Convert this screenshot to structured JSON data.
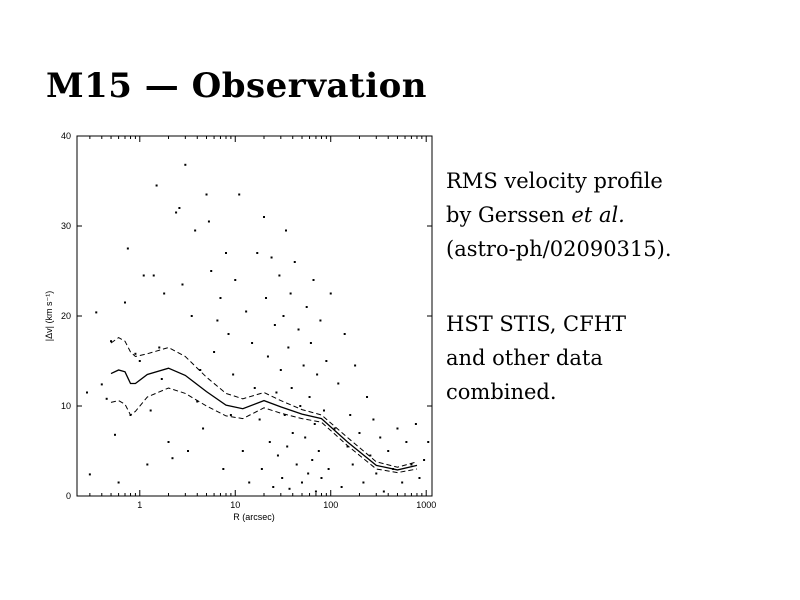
{
  "slide": {
    "title": "M15 — Observation"
  },
  "caption": {
    "line1": "RMS velocity profile",
    "line2_prefix": "by Gerssen ",
    "line2_italic": "et al.",
    "line3": "(astro-ph/02090315).",
    "line4": "HST STIS, CFHT",
    "line5": "and other data",
    "line6": "combined."
  },
  "chart_data": {
    "type": "scatter",
    "xlabel": "R (arcsec)",
    "ylabel": "|Δv| (km s⁻¹)",
    "x_scale": "log",
    "xlim": [
      0.22,
      1150
    ],
    "ylim": [
      0,
      40
    ],
    "x_ticks": [
      1,
      10,
      100,
      1000
    ],
    "x_tick_labels": [
      "1",
      "10",
      "100",
      "1000"
    ],
    "y_ticks": [
      0,
      10,
      20,
      30,
      40
    ],
    "y_tick_labels": [
      "0",
      "10",
      "20",
      "30",
      "40"
    ],
    "grid": false,
    "legend": "none",
    "series": [
      {
        "kind": "points",
        "points": [
          [
            0.28,
            11.5
          ],
          [
            0.3,
            2.4
          ],
          [
            0.35,
            20.4
          ],
          [
            0.4,
            12.4
          ],
          [
            0.45,
            10.8
          ],
          [
            0.5,
            17.2
          ],
          [
            0.55,
            6.8
          ],
          [
            0.6,
            1.5
          ],
          [
            0.7,
            21.5
          ],
          [
            0.75,
            27.5
          ],
          [
            0.8,
            9.0
          ],
          [
            0.9,
            15.8
          ],
          [
            1.0,
            15.0
          ],
          [
            1.1,
            24.5
          ],
          [
            1.2,
            3.5
          ],
          [
            1.3,
            9.5
          ],
          [
            1.4,
            24.5
          ],
          [
            1.5,
            34.5
          ],
          [
            1.6,
            16.5
          ],
          [
            1.7,
            13.0
          ],
          [
            1.8,
            22.5
          ],
          [
            2.0,
            6.0
          ],
          [
            2.2,
            4.2
          ],
          [
            2.4,
            31.5
          ],
          [
            2.6,
            32.0
          ],
          [
            2.8,
            23.5
          ],
          [
            3.0,
            36.8
          ],
          [
            3.2,
            5.0
          ],
          [
            3.5,
            20.0
          ],
          [
            3.8,
            29.5
          ],
          [
            4.0,
            10.5
          ],
          [
            4.3,
            14.0
          ],
          [
            4.6,
            7.5
          ],
          [
            5.0,
            33.5
          ],
          [
            5.3,
            30.5
          ],
          [
            5.6,
            25.0
          ],
          [
            6.0,
            16.0
          ],
          [
            6.5,
            19.5
          ],
          [
            7.0,
            22.0
          ],
          [
            7.5,
            3.0
          ],
          [
            8.0,
            27.0
          ],
          [
            8.5,
            18.0
          ],
          [
            9.0,
            9.0
          ],
          [
            9.5,
            13.5
          ],
          [
            10.0,
            24.0
          ],
          [
            11.0,
            33.5
          ],
          [
            12.0,
            5.0
          ],
          [
            13.0,
            20.5
          ],
          [
            14.0,
            1.5
          ],
          [
            15.0,
            17.0
          ],
          [
            16.0,
            12.0
          ],
          [
            17.0,
            27.0
          ],
          [
            18.0,
            8.5
          ],
          [
            19.0,
            3.0
          ],
          [
            20.0,
            31.0
          ],
          [
            21.0,
            22.0
          ],
          [
            22.0,
            15.5
          ],
          [
            23.0,
            6.0
          ],
          [
            24.0,
            26.5
          ],
          [
            25.0,
            1.0
          ],
          [
            26.0,
            19.0
          ],
          [
            27.0,
            11.5
          ],
          [
            28.0,
            4.5
          ],
          [
            29.0,
            24.5
          ],
          [
            30.0,
            14.0
          ],
          [
            31.0,
            2.0
          ],
          [
            32.0,
            20.0
          ],
          [
            33.0,
            9.0
          ],
          [
            34.0,
            29.5
          ],
          [
            35.0,
            5.5
          ],
          [
            36.0,
            16.5
          ],
          [
            37.0,
            0.8
          ],
          [
            38.0,
            22.5
          ],
          [
            39.0,
            12.0
          ],
          [
            40.0,
            7.0
          ],
          [
            42.0,
            26.0
          ],
          [
            44.0,
            3.5
          ],
          [
            46.0,
            18.5
          ],
          [
            48.0,
            10.0
          ],
          [
            50.0,
            1.5
          ],
          [
            52.0,
            14.5
          ],
          [
            54.0,
            6.5
          ],
          [
            56.0,
            21.0
          ],
          [
            58.0,
            2.5
          ],
          [
            60.0,
            11.0
          ],
          [
            62.0,
            17.0
          ],
          [
            64.0,
            4.0
          ],
          [
            66.0,
            24.0
          ],
          [
            68.0,
            8.0
          ],
          [
            70.0,
            0.5
          ],
          [
            72.0,
            13.5
          ],
          [
            75.0,
            5.0
          ],
          [
            78.0,
            19.5
          ],
          [
            80.0,
            2.0
          ],
          [
            85.0,
            9.5
          ],
          [
            90.0,
            15.0
          ],
          [
            95.0,
            3.0
          ],
          [
            100.0,
            22.5
          ],
          [
            110.0,
            7.5
          ],
          [
            120.0,
            12.5
          ],
          [
            130.0,
            1.0
          ],
          [
            140.0,
            18.0
          ],
          [
            150.0,
            5.5
          ],
          [
            160.0,
            9.0
          ],
          [
            170.0,
            3.5
          ],
          [
            180.0,
            14.5
          ],
          [
            200.0,
            7.0
          ],
          [
            220.0,
            1.5
          ],
          [
            240.0,
            11.0
          ],
          [
            260.0,
            4.5
          ],
          [
            280.0,
            8.5
          ],
          [
            300.0,
            2.5
          ],
          [
            330.0,
            6.5
          ],
          [
            360.0,
            0.5
          ],
          [
            400.0,
            5.0
          ],
          [
            450.0,
            3.0
          ],
          [
            500.0,
            7.5
          ],
          [
            560.0,
            1.5
          ],
          [
            620.0,
            6.0
          ],
          [
            700.0,
            3.5
          ],
          [
            780.0,
            8.0
          ],
          [
            850.0,
            2.0
          ],
          [
            950.0,
            4.0
          ],
          [
            1050.0,
            6.0
          ]
        ]
      },
      {
        "kind": "line",
        "style": "dashed",
        "points": [
          [
            0.5,
            17.0
          ],
          [
            0.6,
            17.6
          ],
          [
            0.7,
            17.2
          ],
          [
            0.8,
            16.0
          ],
          [
            0.9,
            15.5
          ],
          [
            1.2,
            15.8
          ],
          [
            2,
            16.5
          ],
          [
            3,
            15.5
          ],
          [
            5,
            13.2
          ],
          [
            8,
            11.4
          ],
          [
            12,
            10.8
          ],
          [
            20,
            11.5
          ],
          [
            30,
            10.6
          ],
          [
            50,
            9.6
          ],
          [
            80,
            9.0
          ],
          [
            150,
            6.5
          ],
          [
            300,
            3.8
          ],
          [
            500,
            3.2
          ],
          [
            800,
            3.8
          ]
        ]
      },
      {
        "kind": "line",
        "style": "solid",
        "points": [
          [
            0.5,
            13.6
          ],
          [
            0.6,
            14.0
          ],
          [
            0.7,
            13.8
          ],
          [
            0.8,
            12.5
          ],
          [
            0.9,
            12.5
          ],
          [
            1.2,
            13.5
          ],
          [
            2,
            14.2
          ],
          [
            3,
            13.4
          ],
          [
            5,
            11.6
          ],
          [
            8,
            10.1
          ],
          [
            12,
            9.7
          ],
          [
            20,
            10.6
          ],
          [
            30,
            9.9
          ],
          [
            50,
            9.1
          ],
          [
            80,
            8.6
          ],
          [
            150,
            6.0
          ],
          [
            300,
            3.4
          ],
          [
            500,
            2.9
          ],
          [
            800,
            3.4
          ]
        ]
      },
      {
        "kind": "line",
        "style": "dashed",
        "points": [
          [
            0.5,
            10.4
          ],
          [
            0.6,
            10.6
          ],
          [
            0.7,
            10.2
          ],
          [
            0.8,
            9.0
          ],
          [
            0.9,
            9.4
          ],
          [
            1.2,
            11.0
          ],
          [
            2,
            12.0
          ],
          [
            3,
            11.4
          ],
          [
            5,
            10.0
          ],
          [
            8,
            8.9
          ],
          [
            12,
            8.6
          ],
          [
            20,
            9.8
          ],
          [
            30,
            9.2
          ],
          [
            50,
            8.6
          ],
          [
            80,
            8.2
          ],
          [
            150,
            5.6
          ],
          [
            300,
            3.0
          ],
          [
            500,
            2.6
          ],
          [
            800,
            3.0
          ]
        ]
      }
    ]
  }
}
